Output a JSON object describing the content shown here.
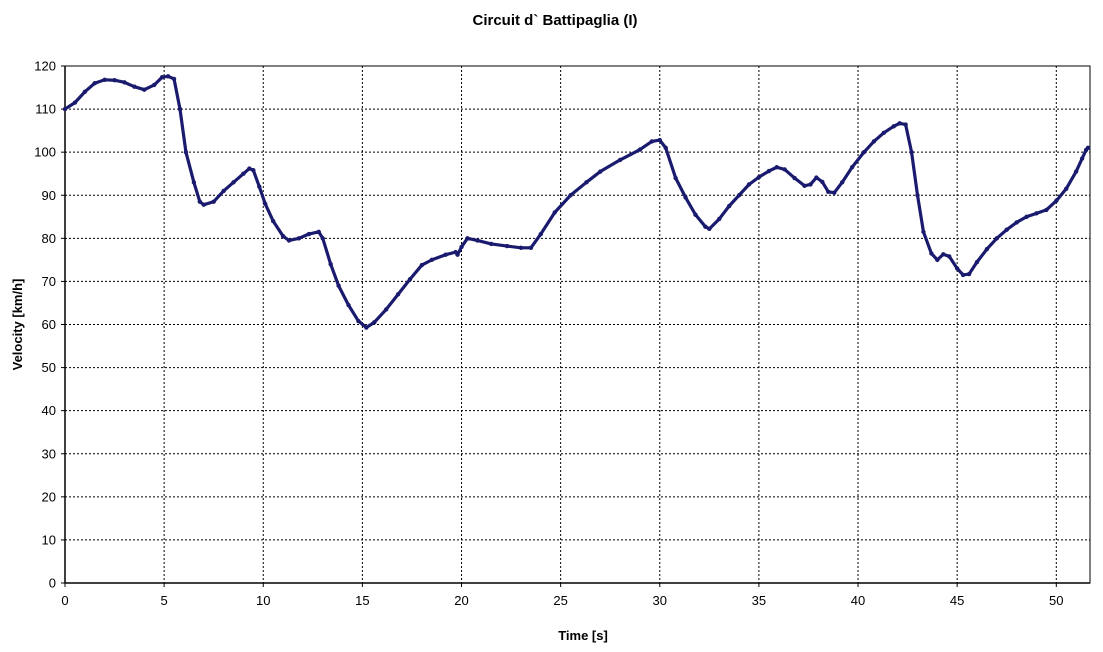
{
  "chart_data": {
    "type": "scatter",
    "title": "Circuit d` Battipaglia (I)",
    "xlabel": "Time [s]",
    "ylabel": "Velocity [km/h]",
    "xlim": [
      0,
      51.7
    ],
    "ylim": [
      0,
      120
    ],
    "xticks": [
      0,
      5,
      10,
      15,
      20,
      25,
      30,
      35,
      40,
      45,
      50
    ],
    "yticks": [
      0,
      10,
      20,
      30,
      40,
      50,
      60,
      70,
      80,
      90,
      100,
      110,
      120
    ],
    "grid": true,
    "series_color": "#1a1a6e",
    "series": [
      {
        "points": [
          [
            0,
            110
          ],
          [
            0.5,
            111.5
          ],
          [
            1,
            114
          ],
          [
            1.5,
            116
          ],
          [
            2,
            116.8
          ],
          [
            2.5,
            116.7
          ],
          [
            3,
            116.2
          ],
          [
            3.5,
            115.2
          ],
          [
            4,
            114.5
          ],
          [
            4.5,
            115.6
          ],
          [
            4.9,
            117.4
          ],
          [
            5.2,
            117.6
          ],
          [
            5.5,
            117
          ],
          [
            5.8,
            110
          ],
          [
            6.1,
            100
          ],
          [
            6.5,
            93
          ],
          [
            6.8,
            88.5
          ],
          [
            7,
            87.8
          ],
          [
            7.5,
            88.5
          ],
          [
            8,
            91
          ],
          [
            8.5,
            93
          ],
          [
            9,
            95
          ],
          [
            9.3,
            96.2
          ],
          [
            9.5,
            95.8
          ],
          [
            9.8,
            92
          ],
          [
            10.1,
            88
          ],
          [
            10.5,
            84
          ],
          [
            11,
            80.5
          ],
          [
            11.3,
            79.5
          ],
          [
            11.8,
            80
          ],
          [
            12.3,
            81
          ],
          [
            12.8,
            81.5
          ],
          [
            13,
            80
          ],
          [
            13.4,
            74
          ],
          [
            13.8,
            69
          ],
          [
            14.3,
            64.5
          ],
          [
            14.8,
            60.8
          ],
          [
            15.2,
            59.3
          ],
          [
            15.6,
            60.5
          ],
          [
            16.2,
            63.5
          ],
          [
            16.8,
            67
          ],
          [
            17.4,
            70.5
          ],
          [
            18,
            73.8
          ],
          [
            18.5,
            75
          ],
          [
            19.2,
            76.2
          ],
          [
            19.7,
            76.8
          ],
          [
            19.8,
            76.2
          ],
          [
            20,
            78
          ],
          [
            20.3,
            80
          ],
          [
            20.8,
            79.5
          ],
          [
            21.5,
            78.7
          ],
          [
            22.3,
            78.2
          ],
          [
            23,
            77.8
          ],
          [
            23.5,
            77.8
          ],
          [
            24,
            81
          ],
          [
            24.7,
            86
          ],
          [
            25.5,
            90
          ],
          [
            26.3,
            93
          ],
          [
            27,
            95.5
          ],
          [
            28,
            98.2
          ],
          [
            29,
            100.6
          ],
          [
            29.6,
            102.5
          ],
          [
            30,
            102.8
          ],
          [
            30.3,
            101
          ],
          [
            30.8,
            94
          ],
          [
            31.3,
            89.5
          ],
          [
            31.8,
            85.5
          ],
          [
            32.3,
            82.7
          ],
          [
            32.5,
            82.2
          ],
          [
            33,
            84.5
          ],
          [
            33.5,
            87.5
          ],
          [
            34,
            90
          ],
          [
            34.5,
            92.5
          ],
          [
            35,
            94.2
          ],
          [
            35.5,
            95.6
          ],
          [
            35.9,
            96.5
          ],
          [
            36.3,
            96
          ],
          [
            36.8,
            94
          ],
          [
            37.3,
            92.2
          ],
          [
            37.6,
            92.5
          ],
          [
            37.9,
            94.1
          ],
          [
            38.2,
            93.1
          ],
          [
            38.5,
            90.8
          ],
          [
            38.8,
            90.6
          ],
          [
            39.2,
            93
          ],
          [
            39.7,
            96.5
          ],
          [
            40.3,
            100
          ],
          [
            40.8,
            102.5
          ],
          [
            41.3,
            104.5
          ],
          [
            41.8,
            106
          ],
          [
            42.1,
            106.7
          ],
          [
            42.4,
            106.4
          ],
          [
            42.7,
            100
          ],
          [
            43,
            90
          ],
          [
            43.3,
            81.5
          ],
          [
            43.7,
            76.5
          ],
          [
            44,
            75
          ],
          [
            44.3,
            76.3
          ],
          [
            44.6,
            75.8
          ],
          [
            45,
            73
          ],
          [
            45.3,
            71.5
          ],
          [
            45.6,
            71.7
          ],
          [
            46,
            74.5
          ],
          [
            46.5,
            77.5
          ],
          [
            47,
            80
          ],
          [
            47.5,
            82
          ],
          [
            48,
            83.7
          ],
          [
            48.5,
            85
          ],
          [
            49,
            85.8
          ],
          [
            49.5,
            86.6
          ],
          [
            50,
            88.7
          ],
          [
            50.5,
            91.5
          ],
          [
            51,
            95.5
          ],
          [
            51.3,
            98.5
          ],
          [
            51.5,
            100.5
          ],
          [
            51.6,
            101
          ]
        ]
      }
    ]
  }
}
